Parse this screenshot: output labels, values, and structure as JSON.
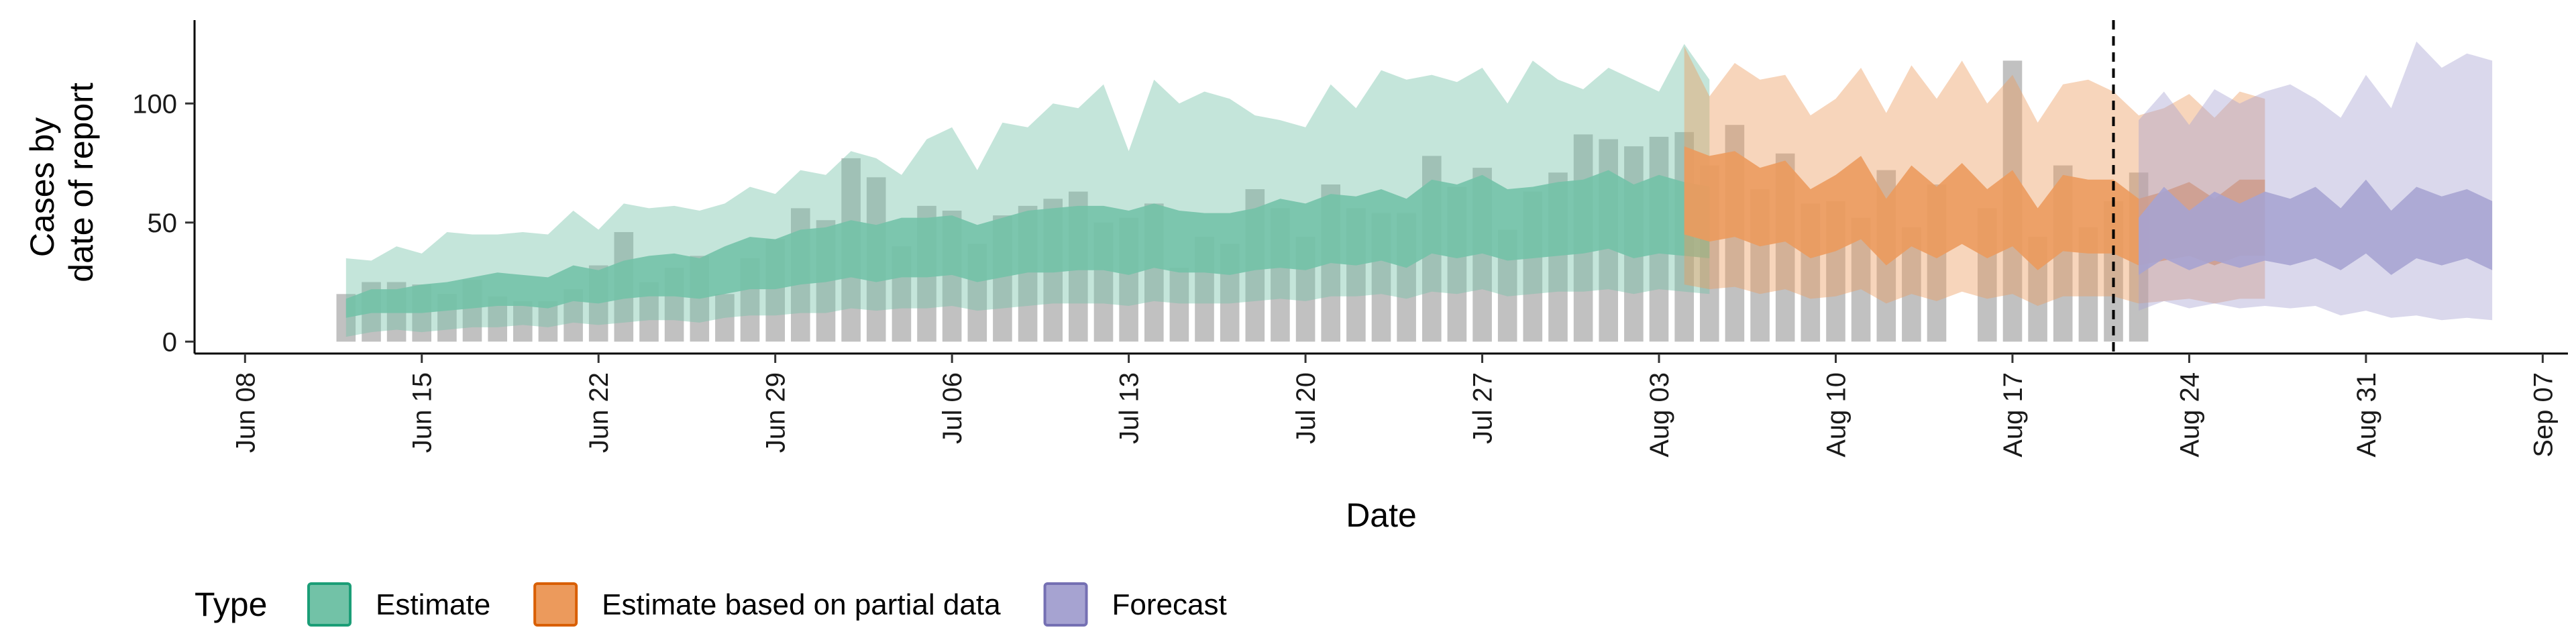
{
  "chart_data": {
    "type": "area",
    "xlabel": "Date",
    "ylabel_lines": [
      "Cases by",
      "date of report"
    ],
    "xlim": [
      "2020-06-06",
      "2020-09-08"
    ],
    "ylim": [
      -5,
      135
    ],
    "x_ticks": [
      {
        "date": "2020-06-08",
        "label": "Jun 08"
      },
      {
        "date": "2020-06-15",
        "label": "Jun 15"
      },
      {
        "date": "2020-06-22",
        "label": "Jun 22"
      },
      {
        "date": "2020-06-29",
        "label": "Jun 29"
      },
      {
        "date": "2020-07-06",
        "label": "Jul 06"
      },
      {
        "date": "2020-07-13",
        "label": "Jul 13"
      },
      {
        "date": "2020-07-20",
        "label": "Jul 20"
      },
      {
        "date": "2020-07-27",
        "label": "Jul 27"
      },
      {
        "date": "2020-08-03",
        "label": "Aug 03"
      },
      {
        "date": "2020-08-10",
        "label": "Aug 10"
      },
      {
        "date": "2020-08-17",
        "label": "Aug 17"
      },
      {
        "date": "2020-08-24",
        "label": "Aug 24"
      },
      {
        "date": "2020-08-31",
        "label": "Aug 31"
      },
      {
        "date": "2020-09-07",
        "label": "Sep 07"
      }
    ],
    "y_ticks": [
      0,
      50,
      100
    ],
    "grid": false,
    "legend": {
      "title": "Type",
      "position": "bottom-left",
      "entries": [
        {
          "name": "Estimate",
          "fill": "#72C2A7",
          "stroke": "#1B9E77"
        },
        {
          "name": "Estimate based on partial data",
          "fill": "#EC9A5C",
          "stroke": "#D95F02"
        },
        {
          "name": "Forecast",
          "fill": "#A6A3D1",
          "stroke": "#7570B3"
        }
      ]
    },
    "bar_color": "#BEBEBE",
    "vline_date": "2020-08-21",
    "reported_cases": {
      "start_date": "2020-06-12",
      "values": [
        20,
        25,
        25,
        24,
        20,
        26,
        19,
        17,
        17,
        22,
        32,
        46,
        25,
        31,
        36,
        20,
        35,
        43,
        56,
        51,
        77,
        69,
        40,
        57,
        55,
        41,
        53,
        57,
        60,
        63,
        50,
        52,
        58,
        31,
        44,
        41,
        64,
        56,
        44,
        66,
        56,
        54,
        54,
        78,
        65,
        73,
        47,
        63,
        71,
        87,
        85,
        82,
        86,
        88,
        74,
        91,
        64,
        79,
        58,
        59,
        52,
        72,
        48,
        66,
        0,
        56,
        118,
        44,
        74,
        48,
        59,
        71
      ]
    },
    "series": [
      {
        "name": "Estimate",
        "start_date": "2020-06-12",
        "outer_upper": [
          35,
          34,
          40,
          37,
          46,
          45,
          45,
          46,
          45,
          55,
          47,
          58,
          56,
          57,
          55,
          58,
          65,
          62,
          72,
          70,
          80,
          77,
          70,
          85,
          90,
          72,
          92,
          90,
          100,
          98,
          108,
          80,
          110,
          100,
          105,
          102,
          95,
          93,
          90,
          108,
          98,
          114,
          110,
          112,
          109,
          115,
          100,
          118,
          110,
          106,
          115,
          110,
          105,
          125,
          110
        ],
        "inner_upper": [
          18,
          22,
          22,
          24,
          25,
          27,
          29,
          28,
          27,
          32,
          30,
          34,
          36,
          37,
          35,
          40,
          44,
          43,
          47,
          48,
          51,
          49,
          52,
          52,
          53,
          49,
          52,
          55,
          56,
          57,
          57,
          55,
          58,
          55,
          54,
          54,
          56,
          60,
          58,
          62,
          61,
          64,
          60,
          68,
          66,
          70,
          64,
          65,
          67,
          68,
          72,
          66,
          70,
          67,
          65
        ],
        "inner_lower": [
          10,
          12,
          12,
          12,
          13,
          14,
          15,
          15,
          14,
          17,
          16,
          18,
          19,
          19,
          18,
          20,
          22,
          22,
          24,
          25,
          27,
          25,
          27,
          27,
          28,
          25,
          27,
          29,
          29,
          30,
          30,
          28,
          31,
          29,
          29,
          28,
          30,
          31,
          30,
          33,
          32,
          34,
          31,
          37,
          35,
          37,
          34,
          35,
          36,
          37,
          39,
          35,
          37,
          36,
          35
        ],
        "outer_lower": [
          2,
          4,
          5,
          4,
          5,
          6,
          6,
          7,
          6,
          8,
          7,
          8,
          9,
          9,
          8,
          10,
          11,
          11,
          12,
          12,
          14,
          13,
          14,
          14,
          15,
          13,
          14,
          15,
          16,
          16,
          16,
          15,
          17,
          16,
          16,
          16,
          17,
          18,
          17,
          19,
          19,
          20,
          18,
          21,
          20,
          22,
          19,
          20,
          21,
          21,
          22,
          20,
          22,
          21,
          20
        ]
      },
      {
        "name": "Estimate based on partial data",
        "start_date": "2020-08-04",
        "outer_upper": [
          124,
          103,
          117,
          110,
          112,
          95,
          102,
          115,
          96,
          116,
          102,
          118,
          100,
          112,
          92,
          108,
          110,
          105,
          95,
          98,
          104,
          94,
          105,
          102
        ],
        "inner_upper": [
          82,
          78,
          80,
          73,
          76,
          64,
          70,
          78,
          60,
          74,
          65,
          75,
          64,
          72,
          56,
          70,
          68,
          68,
          60,
          63,
          67,
          60,
          68,
          68
        ],
        "inner_lower": [
          45,
          42,
          44,
          40,
          42,
          35,
          38,
          43,
          32,
          40,
          35,
          41,
          35,
          40,
          30,
          38,
          37,
          37,
          32,
          34,
          36,
          32,
          36,
          36
        ],
        "outer_lower": [
          24,
          22,
          23,
          20,
          22,
          18,
          19,
          22,
          16,
          20,
          17,
          21,
          18,
          20,
          15,
          19,
          19,
          19,
          16,
          17,
          18,
          16,
          18,
          18
        ]
      },
      {
        "name": "Forecast",
        "start_date": "2020-08-22",
        "outer_upper": [
          93,
          105,
          91,
          106,
          100,
          105,
          108,
          102,
          94,
          112,
          98,
          126,
          115,
          121,
          118
        ],
        "inner_upper": [
          52,
          65,
          55,
          63,
          58,
          63,
          60,
          65,
          56,
          68,
          55,
          65,
          61,
          64,
          59
        ],
        "inner_lower": [
          28,
          35,
          30,
          34,
          31,
          34,
          32,
          35,
          30,
          37,
          28,
          35,
          32,
          35,
          30
        ],
        "outer_lower": [
          13,
          17,
          14,
          16,
          14,
          15,
          14,
          15,
          11,
          13,
          10,
          11,
          9,
          10,
          9
        ]
      }
    ]
  }
}
